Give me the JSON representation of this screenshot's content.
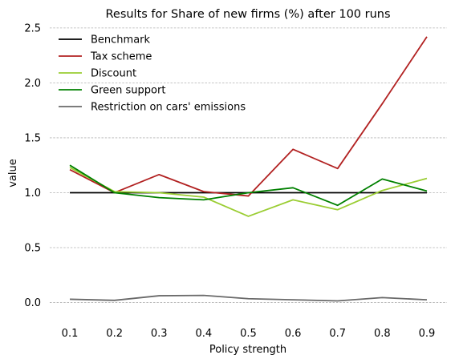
{
  "chart_data": {
    "type": "line",
    "title": "Results for Share of new firms (%) after 100 runs",
    "xlabel": "Policy strength",
    "ylabel": "value",
    "x": [
      0.1,
      0.2,
      0.3,
      0.4,
      0.5,
      0.6,
      0.7,
      0.8,
      0.9
    ],
    "x_tick_labels": [
      "0.1",
      "0.2",
      "0.3",
      "0.4",
      "0.5",
      "0.6",
      "0.7",
      "0.8",
      "0.9"
    ],
    "y_ticks": [
      0.0,
      0.5,
      1.0,
      1.5,
      2.0,
      2.5
    ],
    "y_tick_labels": [
      "0.0",
      "0.5",
      "1.0",
      "1.5",
      "2.0",
      "2.5"
    ],
    "ylim": [
      -0.12,
      2.55
    ],
    "grid": "horizontal dashed",
    "legend_position": "top-left",
    "series": [
      {
        "name": "Benchmark",
        "color": "#000000",
        "values": [
          1.0,
          1.0,
          1.0,
          1.0,
          1.0,
          1.0,
          1.0,
          1.0,
          1.0
        ]
      },
      {
        "name": "Tax scheme",
        "color": "#b22222",
        "values": [
          1.21,
          1.0,
          1.165,
          1.01,
          0.97,
          1.395,
          1.22,
          1.81,
          2.42
        ]
      },
      {
        "name": "Discount",
        "color": "#9acd32",
        "values": [
          1.23,
          1.01,
          1.0,
          0.96,
          0.785,
          0.935,
          0.845,
          1.02,
          1.13
        ]
      },
      {
        "name": "Green support",
        "color": "#008000",
        "values": [
          1.25,
          1.0,
          0.955,
          0.935,
          1.0,
          1.045,
          0.885,
          1.125,
          1.015
        ]
      },
      {
        "name": "Restriction on cars' emissions",
        "color": "#696969",
        "values": [
          0.03,
          0.02,
          0.062,
          0.065,
          0.035,
          0.025,
          0.015,
          0.045,
          0.025
        ]
      }
    ]
  }
}
